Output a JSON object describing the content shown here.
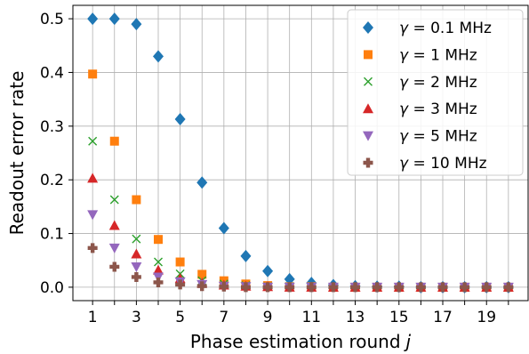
{
  "chart_data": {
    "type": "scatter",
    "title": "",
    "xlabel": "Phase estimation round",
    "xlabel_var": "j",
    "ylabel": "Readout error rate",
    "xlim": [
      0.1,
      20.9
    ],
    "ylim": [
      -0.025,
      0.525
    ],
    "xticks": [
      1,
      3,
      5,
      7,
      9,
      11,
      13,
      15,
      17,
      19
    ],
    "yticks": [
      0.0,
      0.1,
      0.2,
      0.3,
      0.4,
      0.5
    ],
    "ytick_labels": [
      "0.0",
      "0.1",
      "0.2",
      "0.3",
      "0.4",
      "0.5"
    ],
    "grid": true,
    "legend_position": "top-right",
    "x": [
      1,
      2,
      3,
      4,
      5,
      6,
      7,
      8,
      9,
      10,
      11,
      12,
      13,
      14,
      15,
      16,
      17,
      18,
      19,
      20
    ],
    "series": [
      {
        "name": "γ = 0.1 MHz",
        "gamma": "0.1",
        "marker": "diamond",
        "color": "#1f77b4",
        "values": [
          0.5,
          0.5,
          0.49,
          0.43,
          0.313,
          0.195,
          0.11,
          0.058,
          0.03,
          0.015,
          0.008,
          0.004,
          0.002,
          0.001,
          0.001,
          0.0,
          0.0,
          0.0,
          0.0,
          0.0
        ]
      },
      {
        "name": "γ = 1 MHz",
        "gamma": "1",
        "marker": "square",
        "color": "#ff7f0e",
        "values": [
          0.397,
          0.272,
          0.163,
          0.089,
          0.047,
          0.024,
          0.012,
          0.006,
          0.003,
          0.001,
          0.001,
          0.0,
          0.0,
          0.0,
          0.0,
          0.0,
          0.0,
          0.0,
          0.0,
          0.0
        ]
      },
      {
        "name": "γ = 2 MHz",
        "gamma": "2",
        "marker": "x",
        "color": "#2ca02c",
        "values": [
          0.272,
          0.163,
          0.09,
          0.047,
          0.025,
          0.012,
          0.006,
          0.003,
          0.001,
          0.001,
          0.0,
          0.0,
          0.0,
          0.0,
          0.0,
          0.0,
          0.0,
          0.0,
          0.0,
          0.0
        ]
      },
      {
        "name": "γ = 3 MHz",
        "gamma": "3",
        "marker": "triangle-up",
        "color": "#d62728",
        "values": [
          0.203,
          0.115,
          0.062,
          0.032,
          0.016,
          0.008,
          0.004,
          0.002,
          0.001,
          0.0,
          0.0,
          0.0,
          0.0,
          0.0,
          0.0,
          0.0,
          0.0,
          0.0,
          0.0,
          0.0
        ]
      },
      {
        "name": "γ = 5 MHz",
        "gamma": "5",
        "marker": "triangle-down",
        "color": "#9467bd",
        "values": [
          0.135,
          0.073,
          0.038,
          0.019,
          0.01,
          0.005,
          0.002,
          0.001,
          0.0,
          0.0,
          0.0,
          0.0,
          0.0,
          0.0,
          0.0,
          0.0,
          0.0,
          0.0,
          0.0,
          0.0
        ]
      },
      {
        "name": "γ = 10 MHz",
        "gamma": "10",
        "marker": "plus-filled",
        "color": "#8c564b",
        "values": [
          0.073,
          0.038,
          0.019,
          0.009,
          0.005,
          0.002,
          0.001,
          0.0,
          0.0,
          0.0,
          0.0,
          0.0,
          0.0,
          0.0,
          0.0,
          0.0,
          0.0,
          0.0,
          0.0,
          0.0
        ]
      }
    ]
  }
}
